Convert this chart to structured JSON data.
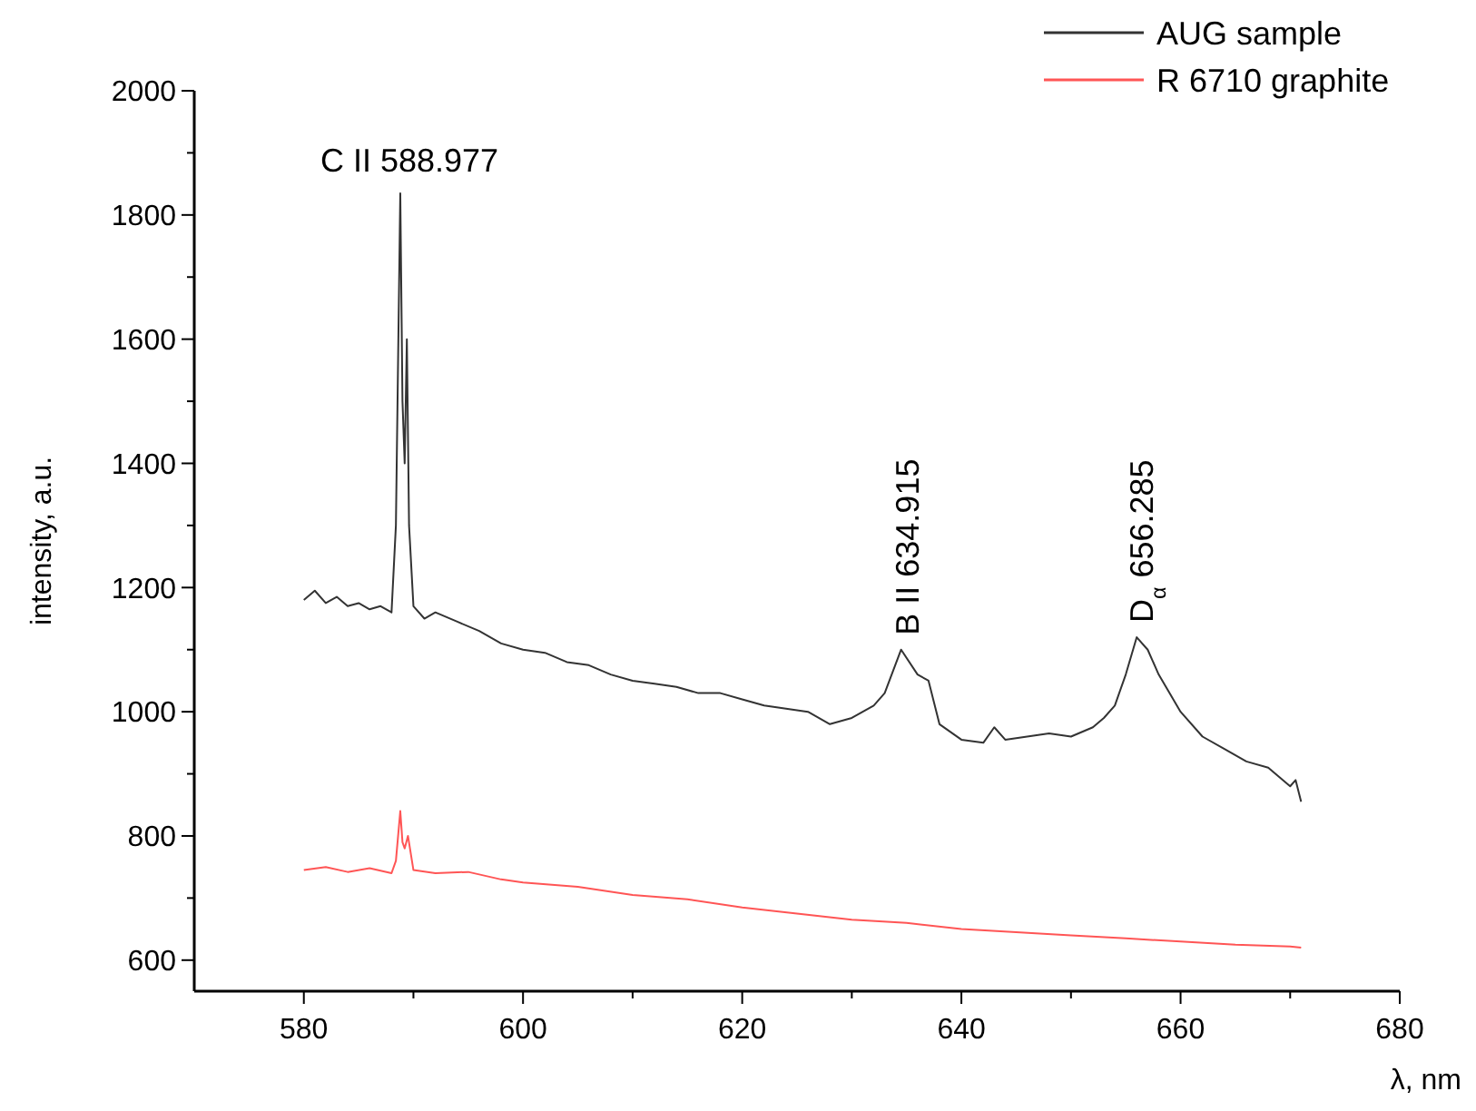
{
  "chart_data": {
    "type": "line",
    "xlabel": "λ, nm",
    "ylabel": "intensity, a.u.",
    "xlim": [
      570,
      680
    ],
    "ylim": [
      550,
      2000
    ],
    "xticks": [
      580,
      {
        "value": 590,
        "label": null
      },
      600,
      {
        "value": 610,
        "label": null
      },
      620,
      {
        "value": 630,
        "label": null
      },
      640,
      {
        "value": 650,
        "label": null
      },
      660,
      {
        "value": 670,
        "label": null
      },
      680
    ],
    "yticks": [
      600,
      {
        "value": 700,
        "label": null
      },
      800,
      {
        "value": 900,
        "label": null
      },
      1000,
      {
        "value": 1100,
        "label": null
      },
      1200,
      {
        "value": 1300,
        "label": null
      },
      1400,
      {
        "value": 1500,
        "label": null
      },
      1600,
      {
        "value": 1700,
        "label": null
      },
      1800,
      {
        "value": 1900,
        "label": null
      },
      2000
    ],
    "legend": "top right",
    "grid": false,
    "series": [
      {
        "name": "AUG sample",
        "color": "#333333",
        "x": [
          580,
          581,
          582,
          583,
          584,
          585,
          586,
          587,
          588,
          588.4,
          588.8,
          589.0,
          589.2,
          589.4,
          589.6,
          590,
          591,
          592,
          594,
          596,
          598,
          600,
          602,
          604,
          606,
          608,
          610,
          612,
          614,
          616,
          618,
          620,
          622,
          624,
          626,
          628,
          630,
          632,
          633,
          634.5,
          636,
          637,
          638,
          640,
          642,
          643,
          644,
          646,
          648,
          650,
          652,
          653,
          654,
          655,
          656,
          657,
          658,
          660,
          662,
          664,
          666,
          668,
          669,
          670,
          670.5,
          671
        ],
        "values": [
          1180,
          1195,
          1175,
          1185,
          1170,
          1175,
          1165,
          1170,
          1160,
          1300,
          1835,
          1500,
          1400,
          1600,
          1300,
          1170,
          1150,
          1160,
          1145,
          1130,
          1110,
          1100,
          1095,
          1080,
          1075,
          1060,
          1050,
          1045,
          1040,
          1030,
          1030,
          1020,
          1010,
          1005,
          1000,
          980,
          990,
          1010,
          1030,
          1100,
          1060,
          1050,
          980,
          955,
          950,
          975,
          955,
          960,
          965,
          960,
          975,
          990,
          1010,
          1060,
          1120,
          1100,
          1060,
          1000,
          960,
          940,
          920,
          910,
          895,
          880,
          890,
          855
        ]
      },
      {
        "name": "R 6710 graphite",
        "color": "#ff5555",
        "x": [
          580,
          582,
          584,
          586,
          588,
          588.4,
          588.8,
          589.0,
          589.2,
          589.5,
          590,
          592,
          595,
          598,
          600,
          605,
          610,
          615,
          620,
          625,
          630,
          635,
          640,
          645,
          650,
          655,
          660,
          665,
          670,
          671
        ],
        "values": [
          745,
          750,
          742,
          748,
          740,
          760,
          840,
          790,
          780,
          800,
          745,
          740,
          742,
          730,
          725,
          718,
          705,
          698,
          685,
          675,
          665,
          660,
          650,
          645,
          640,
          635,
          630,
          625,
          622,
          620
        ]
      }
    ],
    "annotations": [
      {
        "text": "C II 588.977",
        "x": 588.977,
        "y": 1835
      },
      {
        "text": "B II 634.915",
        "x": 634.915,
        "y": 1100
      },
      {
        "text": "D$_{α}$ 656.285",
        "x": 656.285,
        "y": 1120
      }
    ]
  }
}
